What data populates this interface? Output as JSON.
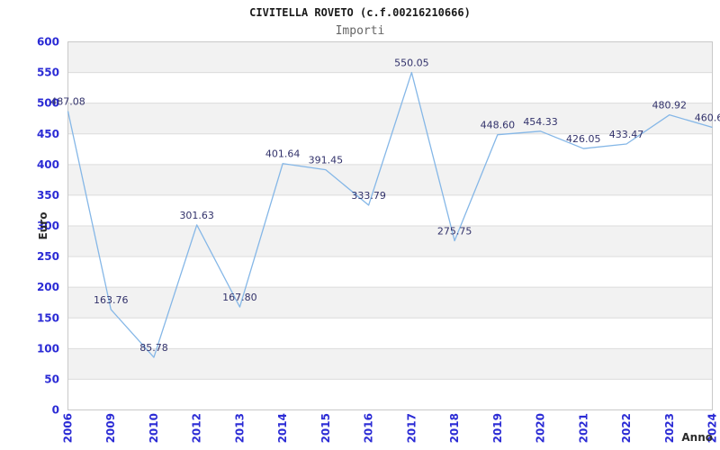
{
  "chart_data": {
    "type": "line",
    "title": "CIVITELLA ROVETO (c.f.00216210666)",
    "subtitle": "Importi",
    "xlabel": "Anno",
    "ylabel": "Euro",
    "categories": [
      "2006",
      "2009",
      "2010",
      "2012",
      "2013",
      "2014",
      "2015",
      "2016",
      "2017",
      "2018",
      "2019",
      "2020",
      "2021",
      "2022",
      "2023",
      "2024"
    ],
    "values": [
      487.08,
      163.76,
      85.78,
      301.63,
      167.8,
      401.64,
      391.45,
      333.79,
      550.05,
      275.75,
      448.6,
      454.33,
      426.05,
      433.47,
      480.92,
      460.6
    ],
    "point_labels": [
      "487.08",
      "163.76",
      "85.78",
      "301.63",
      "167.80",
      "401.64",
      "391.45",
      "333.79",
      "550.05",
      "275.75",
      "448.60",
      "454.33",
      "426.05",
      "433.47",
      "480.92",
      "460.6"
    ],
    "ylim": [
      0,
      600
    ],
    "ytick_step": 50,
    "grid": true,
    "banded_background": true,
    "legend": "none",
    "x_labels_rotated_90": true,
    "last_label_clipped": true,
    "colors": {
      "line": "#85b7e7",
      "axis_tick_labels": "#2b2bd5",
      "point_labels": "#32326b",
      "axis_titles": "#2b2b2b",
      "title": "#1a1a1a",
      "subtitle": "#666666",
      "band": "#f2f2f2",
      "gridline": "#dcdcdc",
      "plot_border": "#c9c9c9",
      "background": "#ffffff"
    }
  }
}
